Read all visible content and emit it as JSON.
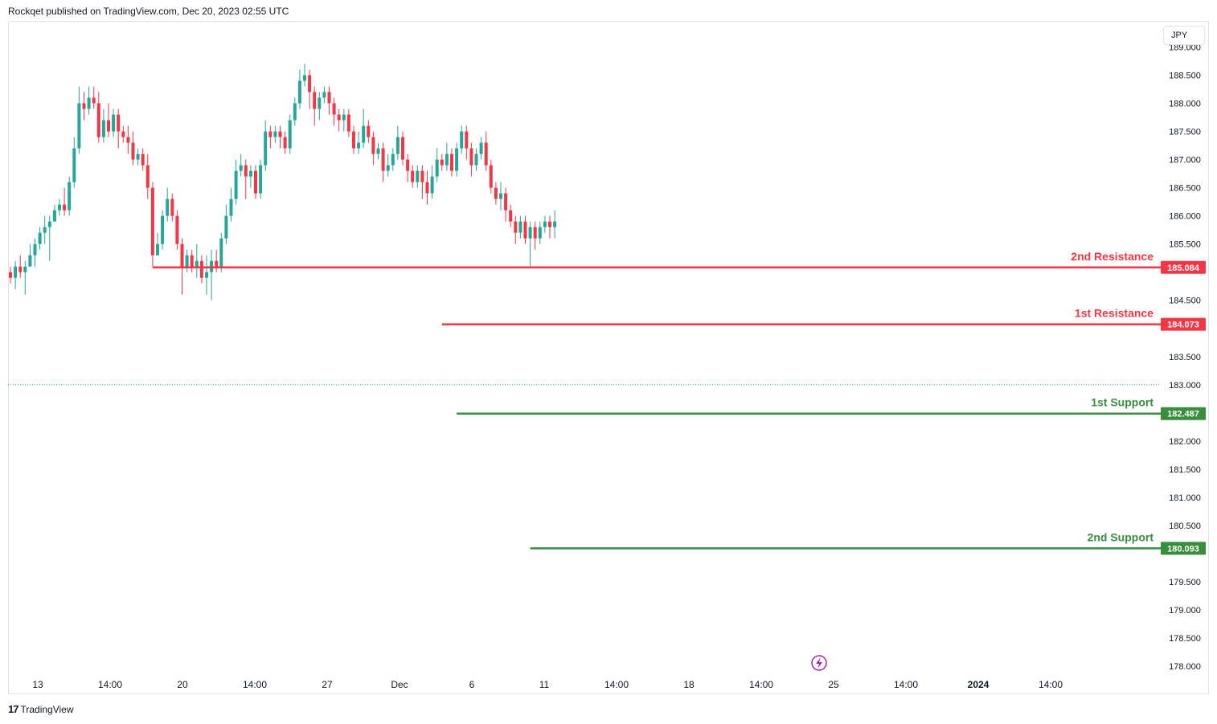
{
  "header": {
    "published": "Rockqet published on TradingView.com, Dec 20, 2023 02:55 UTC"
  },
  "currency": "JPY",
  "footer": {
    "brand": "TradingView",
    "logo_mark": "17"
  },
  "colors": {
    "up": "#26a69a",
    "down": "#f23645",
    "resistance": "#f23645",
    "support": "#388e3c",
    "grid_text": "#131722"
  },
  "chart_data": {
    "type": "candlestick",
    "title": "",
    "ylim": [
      177.9,
      189.45
    ],
    "grid": false,
    "y_ticks": [
      "189.000",
      "188.500",
      "188.000",
      "187.500",
      "187.000",
      "186.500",
      "186.000",
      "185.500",
      "184.500",
      "183.500",
      "183.000",
      "182.000",
      "181.500",
      "181.000",
      "180.500",
      "179.500",
      "179.000",
      "178.500",
      "178.000"
    ],
    "x_ticks": [
      "13",
      "14:00",
      "20",
      "14:00",
      "27",
      "Dec",
      "6",
      "11",
      "14:00",
      "18",
      "14:00",
      "25",
      "14:00",
      "2024",
      "14:00"
    ],
    "levels": [
      {
        "label": "2nd Resistance",
        "value": "185.084",
        "price": 185.084,
        "kind": "resistance",
        "start": 29
      },
      {
        "label": "1st Resistance",
        "value": "184.073",
        "price": 184.073,
        "kind": "resistance",
        "start": 88
      },
      {
        "label": "1st Support",
        "value": "182.487",
        "price": 182.487,
        "kind": "support",
        "start": 91
      },
      {
        "label": "2nd Support",
        "value": "180.093",
        "price": 180.093,
        "kind": "support",
        "start": 106
      }
    ],
    "current_price": 183.0,
    "candles": [
      [
        185.0,
        184.9,
        185.1,
        184.8
      ],
      [
        184.9,
        185.1,
        185.2,
        184.7
      ],
      [
        185.1,
        185.0,
        185.3,
        184.9
      ],
      [
        185.0,
        185.1,
        185.2,
        184.6
      ],
      [
        185.1,
        185.3,
        185.5,
        185.1
      ],
      [
        185.3,
        185.5,
        185.6,
        185.1
      ],
      [
        185.5,
        185.7,
        185.8,
        185.4
      ],
      [
        185.7,
        185.8,
        186.0,
        185.5
      ],
      [
        185.8,
        185.9,
        186.0,
        185.2
      ],
      [
        185.9,
        186.1,
        186.2,
        185.9
      ],
      [
        186.1,
        186.2,
        186.3,
        186.0
      ],
      [
        186.2,
        186.1,
        186.5,
        186.0
      ],
      [
        186.1,
        186.6,
        186.7,
        186.0
      ],
      [
        186.6,
        187.2,
        187.4,
        186.5
      ],
      [
        187.2,
        188.0,
        188.3,
        187.1
      ],
      [
        188.0,
        187.9,
        188.2,
        187.7
      ],
      [
        187.9,
        188.1,
        188.3,
        187.8
      ],
      [
        188.1,
        188.0,
        188.3,
        187.9
      ],
      [
        188.0,
        187.4,
        188.2,
        187.3
      ],
      [
        187.4,
        187.7,
        187.9,
        187.3
      ],
      [
        187.7,
        187.5,
        188.0,
        187.4
      ],
      [
        187.5,
        187.8,
        187.9,
        187.4
      ],
      [
        187.8,
        187.5,
        187.9,
        187.2
      ],
      [
        187.5,
        187.4,
        187.6,
        187.3
      ],
      [
        187.4,
        187.3,
        187.6,
        187.1
      ],
      [
        187.3,
        187.0,
        187.5,
        186.9
      ],
      [
        187.0,
        187.1,
        187.2,
        186.9
      ],
      [
        187.1,
        186.9,
        187.2,
        186.8
      ],
      [
        186.9,
        186.5,
        187.1,
        186.3
      ],
      [
        186.5,
        185.3,
        186.6,
        185.1
      ],
      [
        185.3,
        185.5,
        185.7,
        185.3
      ],
      [
        185.5,
        186.0,
        186.1,
        185.4
      ],
      [
        186.0,
        186.3,
        186.5,
        185.9
      ],
      [
        186.3,
        186.0,
        186.4,
        185.9
      ],
      [
        186.0,
        185.5,
        186.1,
        185.4
      ],
      [
        185.5,
        185.1,
        185.6,
        184.6
      ],
      [
        185.1,
        185.3,
        185.4,
        185.0
      ],
      [
        185.3,
        185.1,
        185.4,
        185.0
      ],
      [
        185.1,
        185.2,
        185.5,
        184.9
      ],
      [
        185.2,
        184.9,
        185.3,
        184.8
      ],
      [
        184.9,
        185.0,
        185.3,
        184.6
      ],
      [
        185.0,
        185.2,
        185.4,
        184.5
      ],
      [
        185.2,
        185.1,
        185.4,
        185.0
      ],
      [
        185.1,
        185.6,
        185.7,
        185.0
      ],
      [
        185.6,
        186.0,
        186.2,
        185.5
      ],
      [
        186.0,
        186.3,
        186.5,
        185.9
      ],
      [
        186.3,
        186.8,
        187.0,
        186.2
      ],
      [
        186.8,
        186.9,
        187.1,
        186.7
      ],
      [
        186.9,
        186.7,
        187.0,
        186.3
      ],
      [
        186.7,
        186.8,
        186.9,
        186.5
      ],
      [
        186.8,
        186.4,
        186.9,
        186.3
      ],
      [
        186.4,
        186.9,
        187.0,
        186.3
      ],
      [
        186.9,
        187.5,
        187.7,
        186.8
      ],
      [
        187.5,
        187.4,
        187.6,
        187.2
      ],
      [
        187.4,
        187.5,
        187.6,
        187.3
      ],
      [
        187.5,
        187.4,
        187.6,
        187.2
      ],
      [
        187.4,
        187.2,
        187.5,
        187.1
      ],
      [
        187.2,
        187.7,
        187.8,
        187.1
      ],
      [
        187.7,
        188.0,
        188.1,
        187.6
      ],
      [
        188.0,
        188.4,
        188.6,
        187.9
      ],
      [
        188.4,
        188.5,
        188.7,
        188.3
      ],
      [
        188.5,
        188.2,
        188.6,
        187.9
      ],
      [
        188.2,
        187.9,
        188.3,
        187.6
      ],
      [
        187.9,
        188.1,
        188.2,
        187.7
      ],
      [
        188.1,
        188.2,
        188.3,
        188.0
      ],
      [
        188.2,
        188.0,
        188.3,
        187.8
      ],
      [
        188.0,
        187.8,
        188.1,
        187.6
      ],
      [
        187.8,
        187.7,
        187.9,
        187.5
      ],
      [
        187.7,
        187.8,
        187.9,
        187.5
      ],
      [
        187.8,
        187.5,
        187.9,
        187.4
      ],
      [
        187.5,
        187.2,
        187.6,
        187.1
      ],
      [
        187.2,
        187.3,
        187.5,
        187.1
      ],
      [
        187.3,
        187.6,
        187.9,
        187.2
      ],
      [
        187.6,
        187.4,
        187.7,
        187.3
      ],
      [
        187.4,
        187.1,
        187.5,
        186.9
      ],
      [
        187.1,
        187.2,
        187.3,
        187.0
      ],
      [
        187.2,
        186.8,
        187.3,
        186.6
      ],
      [
        186.8,
        186.9,
        187.1,
        186.7
      ],
      [
        186.9,
        187.1,
        187.2,
        186.8
      ],
      [
        187.1,
        187.4,
        187.6,
        187.0
      ],
      [
        187.4,
        187.0,
        187.5,
        186.9
      ],
      [
        187.0,
        186.8,
        187.1,
        186.6
      ],
      [
        186.8,
        186.6,
        186.9,
        186.5
      ],
      [
        186.6,
        186.8,
        186.9,
        186.5
      ],
      [
        186.8,
        186.6,
        186.9,
        186.3
      ],
      [
        186.6,
        186.4,
        186.8,
        186.2
      ],
      [
        186.4,
        186.7,
        186.9,
        186.3
      ],
      [
        186.7,
        187.0,
        187.2,
        186.6
      ],
      [
        187.0,
        186.9,
        187.1,
        186.8
      ],
      [
        186.9,
        187.1,
        187.3,
        186.8
      ],
      [
        187.1,
        186.8,
        187.2,
        186.7
      ],
      [
        186.8,
        187.2,
        187.3,
        186.7
      ],
      [
        187.2,
        187.5,
        187.6,
        187.1
      ],
      [
        187.5,
        187.2,
        187.6,
        187.0
      ],
      [
        187.2,
        186.9,
        187.3,
        186.7
      ],
      [
        186.9,
        187.1,
        187.2,
        186.8
      ],
      [
        187.1,
        187.3,
        187.4,
        187.0
      ],
      [
        187.3,
        186.9,
        187.5,
        186.8
      ],
      [
        186.9,
        186.5,
        187.0,
        186.4
      ],
      [
        186.5,
        186.3,
        186.6,
        186.2
      ],
      [
        186.3,
        186.4,
        186.6,
        186.1
      ],
      [
        186.4,
        186.1,
        186.5,
        185.9
      ],
      [
        186.1,
        185.9,
        186.2,
        185.8
      ],
      [
        185.9,
        185.7,
        186.0,
        185.5
      ],
      [
        185.7,
        185.9,
        186.0,
        185.6
      ],
      [
        185.9,
        185.6,
        186.0,
        185.5
      ],
      [
        185.6,
        185.8,
        185.9,
        185.1
      ],
      [
        185.8,
        185.6,
        185.9,
        185.4
      ],
      [
        185.6,
        185.8,
        185.9,
        185.5
      ],
      [
        185.8,
        185.9,
        186.0,
        185.7
      ],
      [
        185.9,
        185.8,
        186.0,
        185.6
      ],
      [
        185.8,
        185.9,
        186.1,
        185.6
      ]
    ]
  }
}
